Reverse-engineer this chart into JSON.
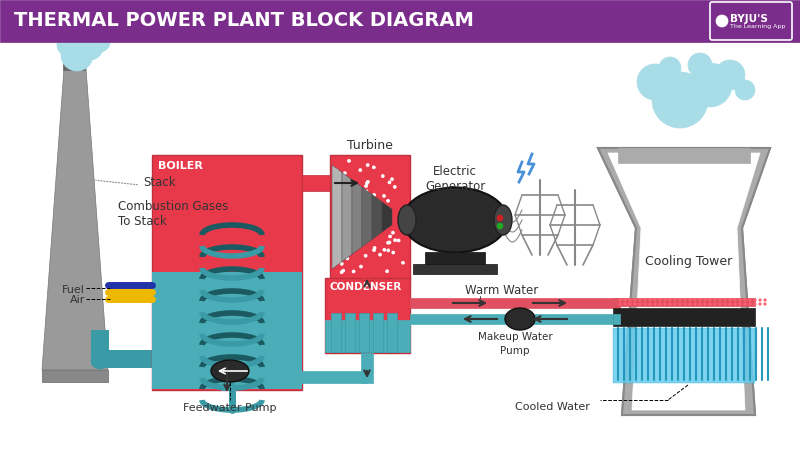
{
  "title": "THERMAL POWER PLANT BLOCK DIAGRAM",
  "title_bg": "#7B2D8B",
  "title_color": "#FFFFFF",
  "bg_color": "#FFFFFF",
  "colors": {
    "red": "#E8394A",
    "teal": "#4BADB8",
    "dark_teal": "#3A9AA5",
    "gray_chimney": "#9A9A9A",
    "gray_tower": "#ABABAB",
    "gray_tower_dark": "#888888",
    "dark": "#2A2A2A",
    "mid_gray": "#666666",
    "pipe_red": "#E05060",
    "pipe_teal": "#4BADB8",
    "blue_steam": "#A8DDE8",
    "lightning_blue": "#4A90D9",
    "text_dark": "#333333",
    "white": "#FFFFFF",
    "coil_dark": "#1A5A60",
    "fuel_blue": "#2233AA",
    "fuel_yellow": "#EEB800",
    "tower_red_dots": "#D04050",
    "tower_blue_lines": "#55BBDD",
    "black_fins": "#222222"
  },
  "labels": {
    "title": "THERMAL POWER PLANT BLOCK DIAGRAM",
    "stack": "Stack",
    "combustion": "Combustion Gases\nTo Stack",
    "boiler": "BOILER",
    "fuel": "Fuel",
    "air": "Air",
    "turbine": "Turbine",
    "electric_gen": "Electric\nGenerator",
    "condenser": "CONDENSER",
    "warm_water": "Warm Water",
    "makeup_water": "Makeup Water",
    "pump": "Pump",
    "cooled_water": "Cooled Water",
    "cooling_tower": "Cooling Tower",
    "feedwater_pump": "Feedwater Pump"
  }
}
